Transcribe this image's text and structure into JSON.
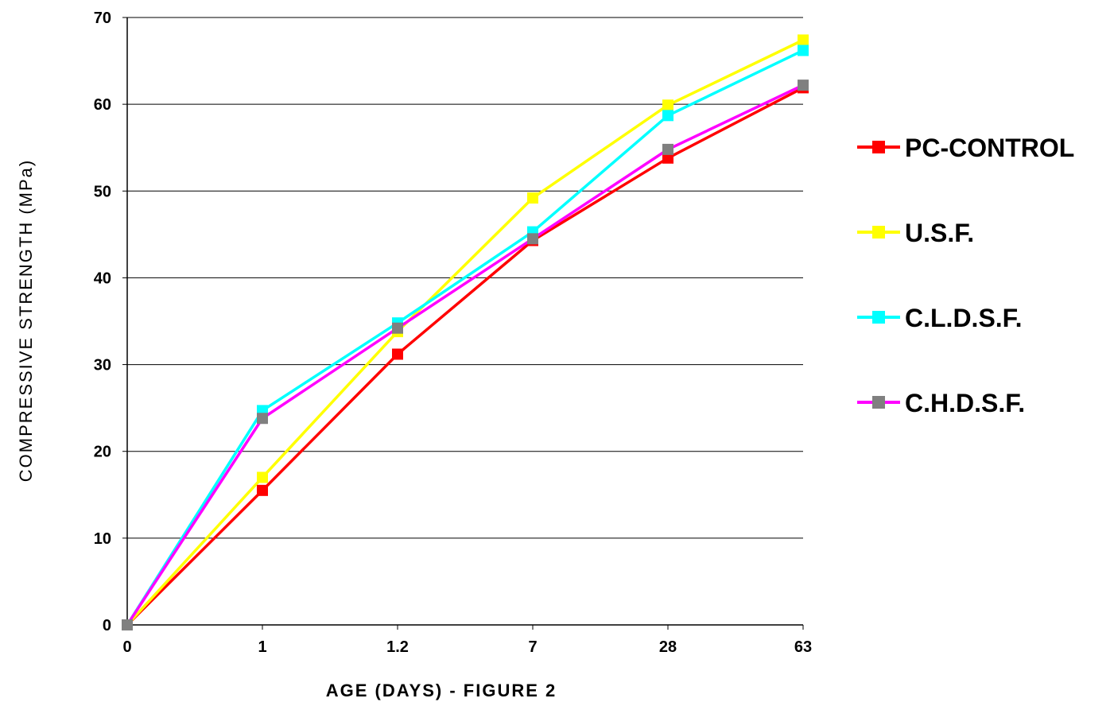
{
  "chart_data": {
    "type": "line",
    "categories": [
      "0",
      "1",
      "1.2",
      "7",
      "28",
      "63"
    ],
    "xlabel": "AGE  (DAYS) - FIGURE 2",
    "ylabel": "COMPRESSIVE STRENGTH (MPa)",
    "ylim": [
      0,
      70
    ],
    "yticks": [
      "0",
      "10",
      "20",
      "30",
      "40",
      "50",
      "60",
      "70"
    ],
    "grid": "horizontal",
    "legend_position": "right",
    "series": [
      {
        "name": "PC-CONTROL",
        "line_color": "#ff0000",
        "marker_color": "#ff0000",
        "values": [
          0,
          15.5,
          31.2,
          44.3,
          53.8,
          61.9
        ]
      },
      {
        "name": "U.S.F.",
        "line_color": "#ffff00",
        "marker_color": "#ffff00",
        "values": [
          0,
          17,
          33.8,
          49.2,
          59.9,
          67.4
        ]
      },
      {
        "name": "C.L.D.S.F.",
        "line_color": "#00ffff",
        "marker_color": "#00ffff",
        "values": [
          0,
          24.7,
          34.8,
          45.3,
          58.7,
          66.2
        ]
      },
      {
        "name": "C.H.D.S.F.",
        "line_color": "#ff00ff",
        "marker_color": "#808080",
        "values": [
          0,
          23.8,
          34.2,
          44.5,
          54.8,
          62.2
        ]
      }
    ]
  }
}
